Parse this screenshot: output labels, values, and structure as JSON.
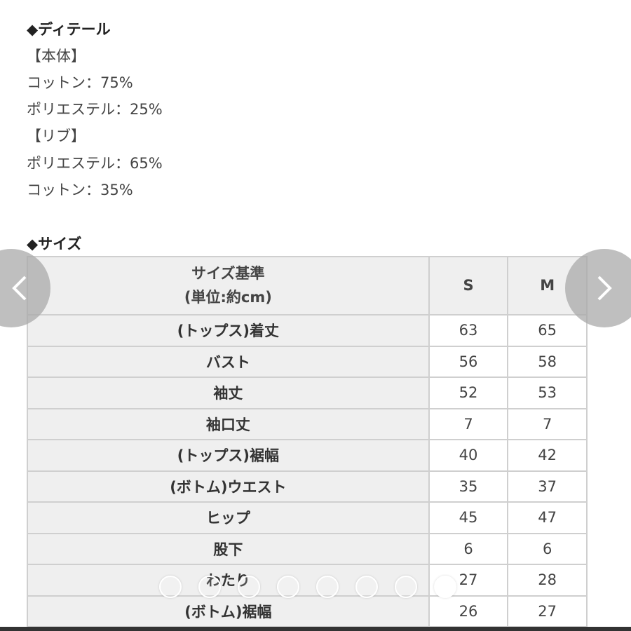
{
  "detail": {
    "heading": "◆ディテール",
    "lines": [
      "【本体】",
      "コットン：75%",
      "ポリエステル：25%",
      "【リブ】",
      "ポリエステル：65%",
      "コットン：35%"
    ]
  },
  "size": {
    "heading": "◆サイズ",
    "header": {
      "label_line1": "サイズ基準",
      "label_line2": "(単位:約cm)",
      "s": "S",
      "m": "M"
    },
    "rows": [
      {
        "label": "(トップス)着丈",
        "s": "63",
        "m": "65"
      },
      {
        "label": "バスト",
        "s": "56",
        "m": "58"
      },
      {
        "label": "袖丈",
        "s": "52",
        "m": "53"
      },
      {
        "label": "袖口丈",
        "s": "7",
        "m": "7"
      },
      {
        "label": "(トップス)裾幅",
        "s": "40",
        "m": "42"
      },
      {
        "label": "(ボトム)ウエスト",
        "s": "35",
        "m": "37"
      },
      {
        "label": "ヒップ",
        "s": "45",
        "m": "47"
      },
      {
        "label": "股下",
        "s": "6",
        "m": "6"
      },
      {
        "label": "わたり",
        "s": "27",
        "m": "28"
      },
      {
        "label": "(ボトム)裾幅",
        "s": "26",
        "m": "27"
      }
    ]
  },
  "carousel": {
    "total_pages": 8,
    "active_page": 8,
    "prev_icon": "chevron-left-icon",
    "next_icon": "chevron-right-icon"
  }
}
